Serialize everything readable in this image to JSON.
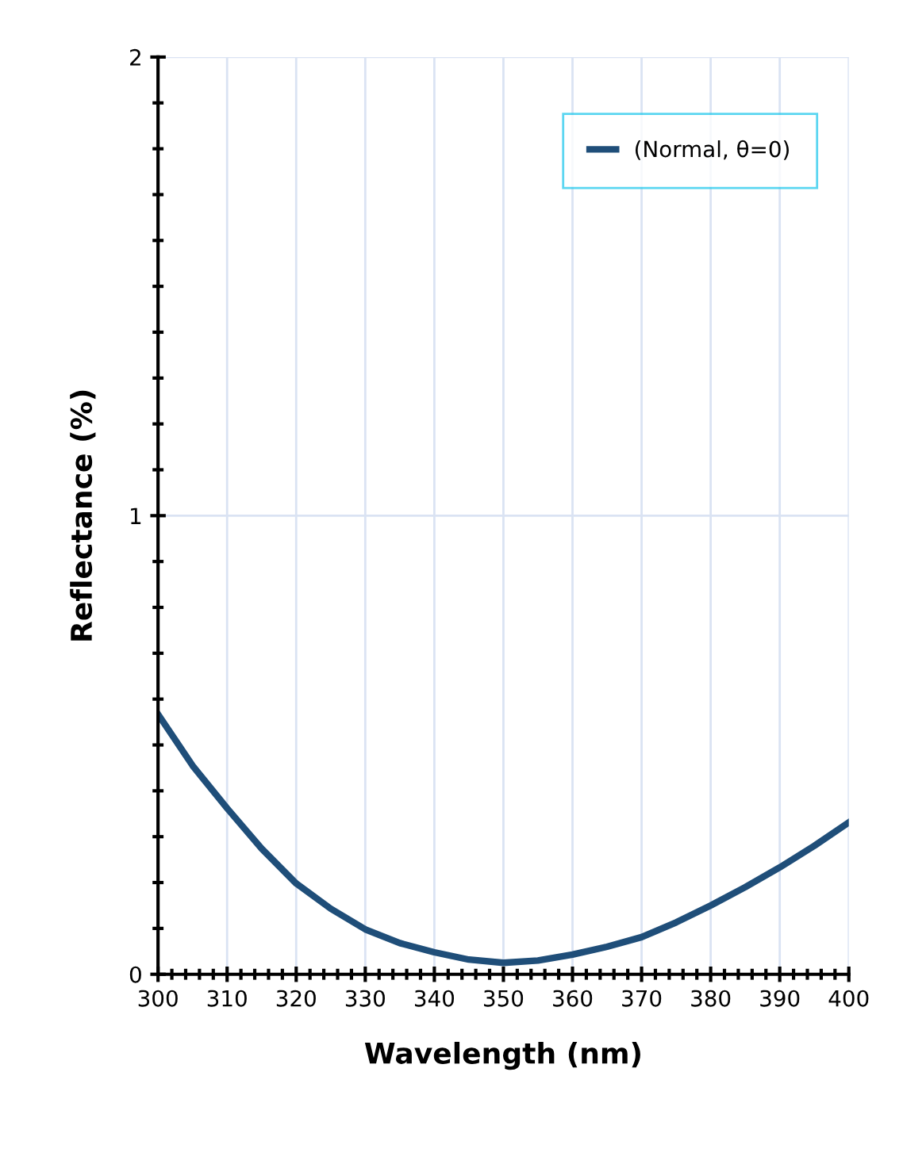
{
  "chart_data": {
    "type": "line",
    "xlabel": "Wavelength (nm)",
    "ylabel": "Reflectance (%)",
    "x": [
      300,
      305,
      310,
      315,
      320,
      325,
      330,
      335,
      340,
      345,
      350,
      355,
      360,
      365,
      370,
      375,
      380,
      385,
      390,
      395,
      400
    ],
    "series": [
      {
        "name": "(Normal, θ=0)",
        "color": "#1f4e79",
        "values": [
          0.567,
          0.455,
          0.362,
          0.274,
          0.198,
          0.143,
          0.098,
          0.068,
          0.048,
          0.032,
          0.025,
          0.03,
          0.043,
          0.06,
          0.081,
          0.113,
          0.15,
          0.19,
          0.233,
          0.28,
          0.331
        ]
      }
    ],
    "xlim": [
      300,
      400
    ],
    "xticks": [
      300,
      310,
      320,
      330,
      340,
      350,
      360,
      370,
      380,
      390,
      400
    ],
    "ylim": [
      0,
      2
    ],
    "yticks": [
      0,
      1,
      2
    ],
    "grid": true,
    "legend": "top right",
    "marker": "none",
    "line_style": "solid"
  }
}
